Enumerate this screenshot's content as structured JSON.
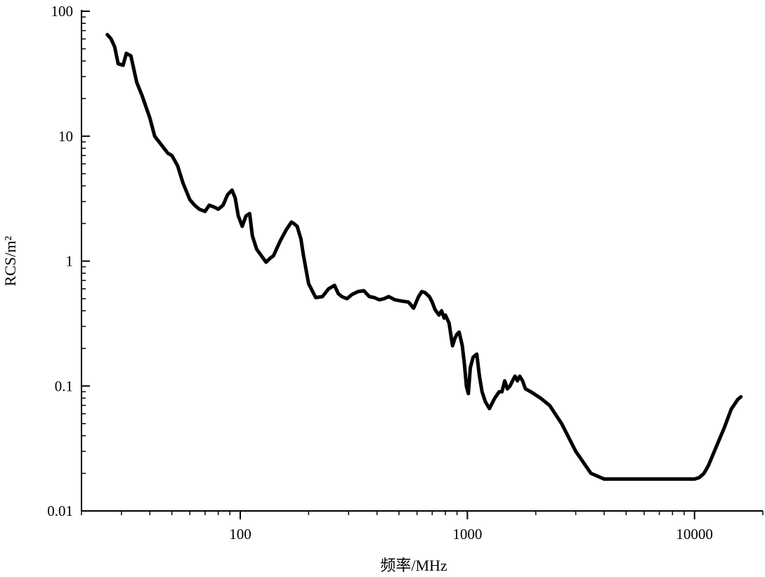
{
  "chart_data": {
    "type": "line",
    "title": "",
    "xlabel": "频率/MHz",
    "ylabel": "RCS/m²",
    "x_scale": "log",
    "y_scale": "log",
    "xlim": [
      20,
      20000
    ],
    "ylim": [
      0.01,
      100
    ],
    "x_ticks": [
      {
        "value": 100,
        "label": "100"
      },
      {
        "value": 1000,
        "label": "1000"
      },
      {
        "value": 10000,
        "label": "10000"
      }
    ],
    "y_ticks": [
      {
        "value": 0.01,
        "label": "0.01"
      },
      {
        "value": 0.1,
        "label": "0.1"
      },
      {
        "value": 1,
        "label": "1"
      },
      {
        "value": 10,
        "label": "10"
      },
      {
        "value": 100,
        "label": "100"
      }
    ],
    "grid": false,
    "legend": "none",
    "line_color": "#000000",
    "series": [
      {
        "x": [
          26,
          27,
          28,
          29,
          30.5,
          31.5,
          33,
          35,
          37,
          40,
          42,
          45,
          48,
          50,
          53,
          56,
          60,
          63,
          66,
          70,
          73,
          77,
          80,
          84,
          88,
          92,
          95,
          98,
          102,
          106,
          110,
          113,
          118,
          124,
          130,
          135,
          140,
          150,
          160,
          168,
          172,
          178,
          185,
          190,
          200,
          215,
          230,
          245,
          260,
          270,
          280,
          295,
          310,
          330,
          350,
          370,
          390,
          410,
          430,
          450,
          480,
          510,
          550,
          580,
          610,
          630,
          650,
          680,
          700,
          720,
          750,
          770,
          790,
          800,
          830,
          860,
          880,
          900,
          920,
          950,
          970,
          990,
          1010,
          1030,
          1060,
          1100,
          1130,
          1160,
          1200,
          1250,
          1320,
          1380,
          1420,
          1460,
          1500,
          1540,
          1580,
          1620,
          1660,
          1700,
          1750,
          1800,
          1900,
          2100,
          2300,
          2600,
          3000,
          3500,
          4000,
          4300,
          5000,
          6000,
          7000,
          8000,
          9000,
          10000,
          10500,
          11000,
          11500,
          12500,
          13500,
          14500,
          15500,
          16000
        ],
        "y": [
          65,
          60,
          52,
          38,
          37,
          46,
          44,
          27,
          21,
          14,
          10,
          8.5,
          7.3,
          7,
          5.8,
          4.2,
          3.1,
          2.8,
          2.6,
          2.5,
          2.8,
          2.7,
          2.6,
          2.8,
          3.4,
          3.7,
          3.2,
          2.3,
          1.9,
          2.3,
          2.4,
          1.6,
          1.25,
          1.1,
          0.98,
          1.05,
          1.1,
          1.45,
          1.8,
          2.05,
          2.0,
          1.9,
          1.5,
          1.1,
          0.66,
          0.51,
          0.52,
          0.6,
          0.64,
          0.55,
          0.52,
          0.5,
          0.54,
          0.57,
          0.58,
          0.52,
          0.51,
          0.49,
          0.5,
          0.52,
          0.49,
          0.48,
          0.47,
          0.42,
          0.52,
          0.57,
          0.56,
          0.52,
          0.47,
          0.41,
          0.37,
          0.4,
          0.35,
          0.37,
          0.32,
          0.21,
          0.24,
          0.26,
          0.27,
          0.21,
          0.15,
          0.1,
          0.087,
          0.14,
          0.17,
          0.18,
          0.12,
          0.09,
          0.075,
          0.066,
          0.08,
          0.09,
          0.09,
          0.11,
          0.095,
          0.1,
          0.11,
          0.12,
          0.11,
          0.12,
          0.11,
          0.095,
          0.09,
          0.08,
          0.07,
          0.05,
          0.03,
          0.02,
          0.018,
          0.018,
          0.018,
          0.018,
          0.018,
          0.018,
          0.018,
          0.018,
          0.0185,
          0.02,
          0.023,
          0.033,
          0.046,
          0.065,
          0.078,
          0.082
        ]
      }
    ]
  }
}
